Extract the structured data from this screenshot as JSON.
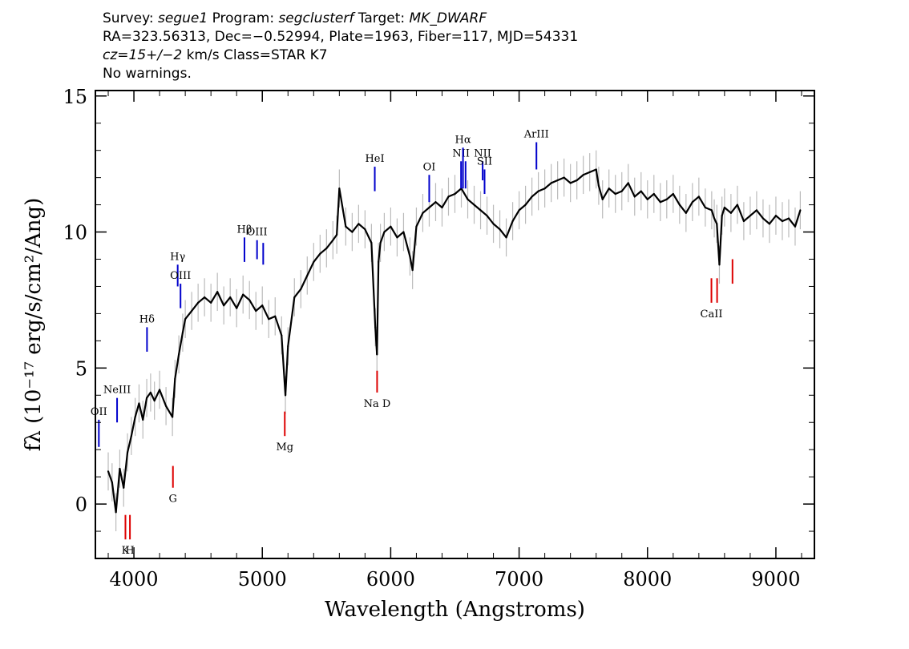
{
  "header": {
    "line1": {
      "survey_label": "Survey: ",
      "survey": "segue1",
      "program_label": " Program: ",
      "program": "segclusterf",
      "target_label": " Target: ",
      "target": "MK_DWARF"
    },
    "line2": "RA=323.56313, Dec=−0.52994, Plate=1963, Fiber=117, MJD=54331",
    "line3": {
      "cz": "cz=15+/−2",
      "rest": " km/s Class=STAR K7"
    },
    "line4": "No warnings."
  },
  "chart_data": {
    "type": "line",
    "xlabel": "Wavelength (Angstroms)",
    "ylabel": "fλ (10⁻¹⁷ erg/s/cm²/Ang)",
    "xlim": [
      3700,
      9300
    ],
    "ylim": [
      -2,
      15.2
    ],
    "x_ticks": [
      4000,
      5000,
      6000,
      7000,
      8000,
      9000
    ],
    "y_ticks": [
      0,
      5,
      10,
      15
    ],
    "colors": {
      "flux": "#000000",
      "error": "#bbbbbb",
      "emission": "#0000cc",
      "absorption": "#dd0000"
    },
    "series": [
      {
        "x": [
          3800,
          3830,
          3860,
          3890,
          3920,
          3950,
          3980,
          4010,
          4040,
          4070,
          4100,
          4130,
          4160,
          4200,
          4250,
          4300,
          4320,
          4350,
          4380,
          4400,
          4450,
          4500,
          4550,
          4600,
          4650,
          4700,
          4750,
          4800,
          4850,
          4900,
          4950,
          5000,
          5050,
          5100,
          5150,
          5180,
          5200,
          5250,
          5300,
          5350,
          5400,
          5450,
          5500,
          5550,
          5580,
          5600,
          5650,
          5700,
          5750,
          5800,
          5850,
          5880,
          5893,
          5905,
          5920,
          5950,
          6000,
          6050,
          6100,
          6150,
          6170,
          6200,
          6250,
          6300,
          6350,
          6400,
          6450,
          6500,
          6550,
          6600,
          6650,
          6700,
          6750,
          6800,
          6850,
          6900,
          6950,
          7000,
          7050,
          7100,
          7150,
          7200,
          7250,
          7300,
          7350,
          7400,
          7450,
          7500,
          7550,
          7600,
          7620,
          7650,
          7700,
          7750,
          7800,
          7850,
          7900,
          7950,
          8000,
          8050,
          8100,
          8150,
          8200,
          8250,
          8300,
          8350,
          8400,
          8450,
          8500,
          8520,
          8540,
          8560,
          8580,
          8600,
          8650,
          8700,
          8750,
          8800,
          8850,
          8900,
          8950,
          9000,
          9050,
          9100,
          9150,
          9190
        ],
        "y": [
          1.2,
          0.8,
          -0.3,
          1.3,
          0.6,
          1.9,
          2.5,
          3.2,
          3.7,
          3.1,
          3.9,
          4.1,
          3.8,
          4.2,
          3.6,
          3.2,
          4.6,
          5.5,
          6.3,
          6.8,
          7.1,
          7.4,
          7.6,
          7.4,
          7.8,
          7.3,
          7.6,
          7.2,
          7.7,
          7.5,
          7.1,
          7.3,
          6.8,
          6.9,
          6.2,
          4.0,
          5.8,
          7.6,
          7.9,
          8.4,
          8.9,
          9.2,
          9.4,
          9.7,
          9.9,
          11.6,
          10.2,
          10.0,
          10.3,
          10.1,
          9.6,
          6.5,
          5.5,
          8.9,
          9.6,
          10.0,
          10.2,
          9.8,
          10.0,
          9.1,
          8.6,
          10.2,
          10.7,
          10.9,
          11.1,
          10.9,
          11.3,
          11.4,
          11.6,
          11.2,
          11.0,
          10.8,
          10.6,
          10.3,
          10.1,
          9.8,
          10.4,
          10.8,
          11.0,
          11.3,
          11.5,
          11.6,
          11.8,
          11.9,
          12.0,
          11.8,
          11.9,
          12.1,
          12.2,
          12.3,
          11.7,
          11.2,
          11.6,
          11.4,
          11.5,
          11.8,
          11.3,
          11.5,
          11.2,
          11.4,
          11.1,
          11.2,
          11.4,
          11.0,
          10.7,
          11.1,
          11.3,
          10.9,
          10.8,
          10.5,
          10.3,
          8.8,
          10.6,
          10.9,
          10.7,
          11.0,
          10.4,
          10.6,
          10.8,
          10.5,
          10.3,
          10.6,
          10.4,
          10.5,
          10.2,
          10.8
        ]
      }
    ],
    "line_labels": [
      {
        "text": "OII",
        "x": 3727,
        "y_lo": 2.1,
        "y_hi": 3.1,
        "type": "emission"
      },
      {
        "text": "NeIII",
        "x": 3869,
        "y_lo": 3.0,
        "y_hi": 3.9,
        "type": "emission"
      },
      {
        "text": "K",
        "x": 3934,
        "y_lo": -1.3,
        "y_hi": -0.4,
        "type": "absorption"
      },
      {
        "text": "H",
        "x": 3969,
        "y_lo": -1.3,
        "y_hi": -0.4,
        "type": "absorption"
      },
      {
        "text": "Hδ",
        "x": 4102,
        "y_lo": 5.6,
        "y_hi": 6.5,
        "type": "emission"
      },
      {
        "text": "G",
        "x": 4304,
        "y_lo": 0.6,
        "y_hi": 1.4,
        "type": "absorption"
      },
      {
        "text": "Hγ",
        "x": 4341,
        "y_lo": 8.0,
        "y_hi": 8.8,
        "type": "emission"
      },
      {
        "text": "OIII",
        "x": 4363,
        "y_lo": 7.2,
        "y_hi": 8.1,
        "type": "emission"
      },
      {
        "text": "Hβ",
        "x": 4861,
        "y_lo": 8.9,
        "y_hi": 9.8,
        "type": "emission"
      },
      {
        "text": "OIII",
        "x": 4959,
        "y_lo": 9.0,
        "y_hi": 9.7,
        "type": "emission"
      },
      {
        "text": "",
        "x": 5007,
        "y_lo": 8.8,
        "y_hi": 9.6,
        "type": "emission"
      },
      {
        "text": "Mg",
        "x": 5175,
        "y_lo": 2.5,
        "y_hi": 3.4,
        "type": "absorption"
      },
      {
        "text": "Na D",
        "x": 5894,
        "y_lo": 4.1,
        "y_hi": 4.9,
        "type": "absorption"
      },
      {
        "text": "HeI",
        "x": 5876,
        "y_lo": 11.5,
        "y_hi": 12.4,
        "type": "emission"
      },
      {
        "text": "OI",
        "x": 6300,
        "y_lo": 11.1,
        "y_hi": 12.1,
        "type": "emission"
      },
      {
        "text": "NII",
        "x": 6548,
        "y_lo": 11.6,
        "y_hi": 12.6,
        "type": "emission"
      },
      {
        "text": "Hα",
        "x": 6563,
        "y_lo": 11.6,
        "y_hi": 13.1,
        "type": "emission"
      },
      {
        "text": "",
        "x": 6583,
        "y_lo": 11.6,
        "y_hi": 12.6,
        "type": "emission"
      },
      {
        "text": "NII",
        "x": 6716,
        "y_lo": 11.9,
        "y_hi": 12.6,
        "type": "emission"
      },
      {
        "text": "SII",
        "x": 6731,
        "y_lo": 11.4,
        "y_hi": 12.3,
        "type": "emission"
      },
      {
        "text": "ArIII",
        "x": 7135,
        "y_lo": 12.3,
        "y_hi": 13.3,
        "type": "emission"
      },
      {
        "text": "CaII",
        "x": 8498,
        "y_lo": 7.4,
        "y_hi": 8.3,
        "type": "absorption"
      },
      {
        "text": "",
        "x": 8542,
        "y_lo": 7.4,
        "y_hi": 8.3,
        "type": "absorption"
      },
      {
        "text": "",
        "x": 8662,
        "y_lo": 8.1,
        "y_hi": 9.0,
        "type": "absorption"
      }
    ]
  }
}
